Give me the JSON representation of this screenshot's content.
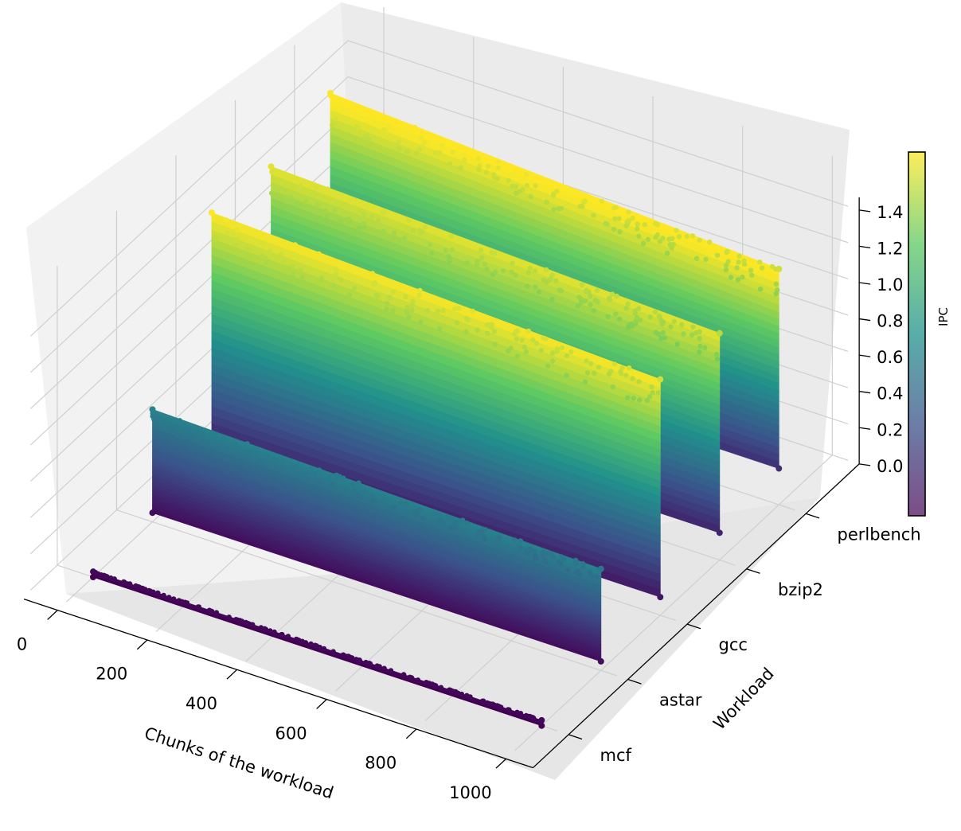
{
  "chart_data": {
    "type": "scatter",
    "projection": "3d",
    "colormap": "viridis",
    "xlabel": "Chunks of the workload",
    "ylabel": "Workload",
    "zlabel": "",
    "xlim": [
      0,
      1000
    ],
    "zlim": [
      0,
      1.4
    ],
    "x_ticks": [
      "0",
      "200",
      "400",
      "600",
      "800",
      "1000"
    ],
    "y_ticks": [
      "mcf",
      "astar",
      "gcc",
      "bzip2",
      "perlbench"
    ],
    "z_ticks": [
      "0.0",
      "0.2",
      "0.4",
      "0.6",
      "0.8",
      "1.0",
      "1.2",
      "1.4"
    ],
    "colorbar": {
      "label": "IPC",
      "range": [
        0,
        1.4
      ]
    },
    "grid": true,
    "series": [
      {
        "name": "mcf",
        "ipc_min": 0.0,
        "ipc_max": 0.03,
        "ipc_start": 0.03,
        "ipc_end": 0.03
      },
      {
        "name": "astar",
        "ipc_min": 0.05,
        "ipc_max": 0.62,
        "ipc_start": 0.62,
        "ipc_end": 0.56
      },
      {
        "name": "gcc",
        "ipc_min": 0.1,
        "ipc_max": 1.4,
        "ipc_start": 1.4,
        "ipc_end": 1.3
      },
      {
        "name": "bzip2",
        "ipc_min": 0.15,
        "ipc_max": 1.35,
        "ipc_start": 1.35,
        "ipc_end": 1.25
      },
      {
        "name": "perlbench",
        "ipc_min": 0.2,
        "ipc_max": 1.45,
        "ipc_start": 1.45,
        "ipc_end": 1.3
      }
    ]
  }
}
